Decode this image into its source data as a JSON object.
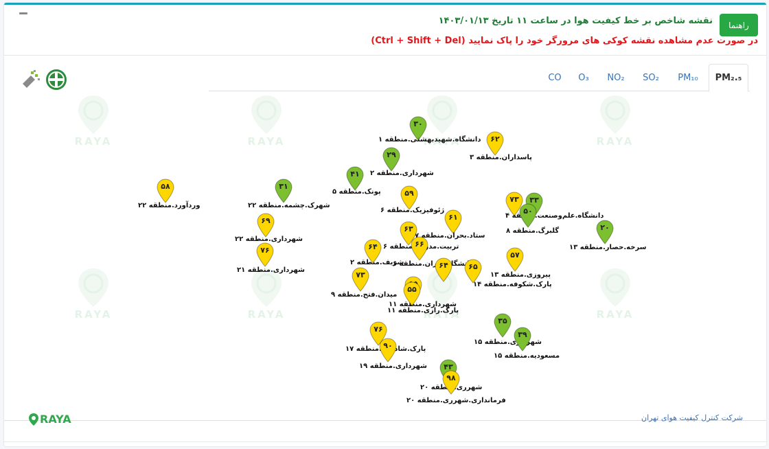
{
  "header": {
    "guide_button": "راهنما",
    "title": "نقشه شاخص بر خط کیفیت هوا در ساعت ۱۱ تاریخ ۱۴۰۳/۰۱/۱۳",
    "warning": "در صورت عدم مشاهده نقشه کوکی های مرورگر خود را پاک نمایید (Ctrl + Shift + Del)"
  },
  "tabs": [
    {
      "label": "PM₂.₅",
      "active": true
    },
    {
      "label": "PM₁₀",
      "active": false
    },
    {
      "label": "SO₂",
      "active": false
    },
    {
      "label": "NO₂",
      "active": false
    },
    {
      "label": "O₃",
      "active": false
    },
    {
      "label": "CO",
      "active": false
    }
  ],
  "colors": {
    "good": "#7cbf2f",
    "moderate": "#ffd700",
    "accent": "#17a2b8",
    "brand_green": "#2fa84f"
  },
  "watermark_text": "RAYA",
  "stations": [
    {
      "value": "۳۰",
      "level": "good",
      "label": "دانشگاه.شهیدبهشتی.منطقه ۱"
    },
    {
      "value": "۶۲",
      "level": "moderate",
      "label": "پاسداران.منطقه ۳"
    },
    {
      "value": "۲۹",
      "level": "good",
      "label": "شهرداری.منطقه ۲"
    },
    {
      "value": "۴۱",
      "level": "good",
      "label": "پونک.منطقه ۵"
    },
    {
      "value": "۵۸",
      "level": "moderate",
      "label": "وردآورد.منطقه ۲۲"
    },
    {
      "value": "۳۱",
      "level": "good",
      "label": "شهرک.چشمه.منطقه ۲۲"
    },
    {
      "value": "۵۹",
      "level": "moderate",
      "label": "ژئوفیزیک.منطقه ۶"
    },
    {
      "value": "۶۹",
      "level": "moderate",
      "label": "شهرداری.منطقه ۲۲"
    },
    {
      "value": "۶۱",
      "level": "moderate",
      "label": "ستاد.بحران.منطقه ۷"
    },
    {
      "value": "۷۳",
      "level": "moderate",
      "label": "دانشگاه.علم‌وصنعت.منطقه ۴"
    },
    {
      "value": "۳۳",
      "level": "good",
      "label": ""
    },
    {
      "value": "۵۰",
      "level": "good",
      "label": "گلبرگ.منطقه ۸"
    },
    {
      "value": "۲۰",
      "level": "good",
      "label": "سرخه.حصار.منطقه ۱۳"
    },
    {
      "value": "۶۳",
      "level": "moderate",
      "label": "تربیت.مدرس.منطقه ۶"
    },
    {
      "value": "۷۶",
      "level": "moderate",
      "label": "شهرداری.منطقه ۲۱"
    },
    {
      "value": "۶۴",
      "level": "moderate",
      "label": "شریف.منطقه ۲"
    },
    {
      "value": "۶۶",
      "level": "moderate",
      "label": "دانشگاه.تهران.منطقه ۶"
    },
    {
      "value": "۵۷",
      "level": "moderate",
      "label": "پیروزی.منطقه ۱۳"
    },
    {
      "value": "۶۴",
      "level": "moderate",
      "label": ""
    },
    {
      "value": "۶۵",
      "level": "moderate",
      "label": "پارک.شکوفه.منطقه ۱۴"
    },
    {
      "value": "۷۳",
      "level": "moderate",
      "label": "میدان.فتح.منطقه ۹"
    },
    {
      "value": "۵۵",
      "level": "moderate",
      "label": "شهرداری.منطقه ۱۱"
    },
    {
      "value": "۵۵",
      "level": "moderate",
      "label": "پارک.رازی.منطقه ۱۱"
    },
    {
      "value": "۳۵",
      "level": "good",
      "label": "شهرداری.منطقه ۱۵"
    },
    {
      "value": "۳۹",
      "level": "good",
      "label": "مسعودیه.منطقه ۱۵"
    },
    {
      "value": "۷۶",
      "level": "moderate",
      "label": "پارک.شادمان.منطقه ۱۷"
    },
    {
      "value": "۹۰",
      "level": "moderate",
      "label": "شهرداری.منطقه ۱۹"
    },
    {
      "value": "۴۳",
      "level": "good",
      "label": "شهرری.منطقه ۲۰"
    },
    {
      "value": "۹۸",
      "level": "moderate",
      "label": "فرمانداری.شهرری.منطقه ۲۰"
    }
  ],
  "footer": {
    "company": "شرکت کنترل کیفیت هوای تهران",
    "brand": "RAYA"
  }
}
